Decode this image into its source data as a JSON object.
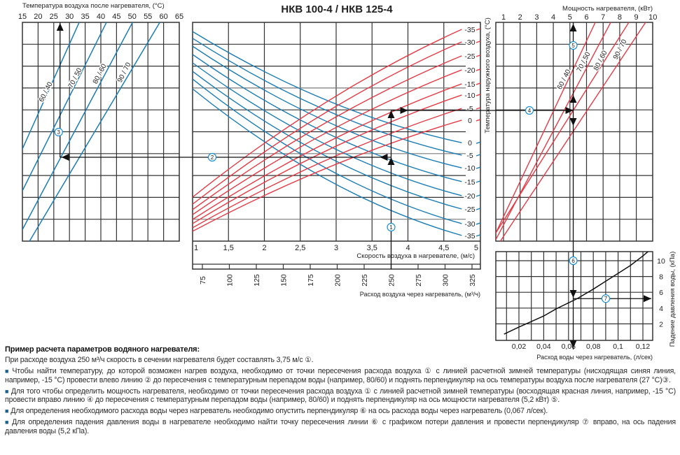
{
  "title": "НКВ 100-4 / НКВ 125-4",
  "colors": {
    "blue": "#1b7db4",
    "red": "#e63a46",
    "grid": "#333333",
    "grid_light": "#7a7a7a",
    "arrow": "#111111",
    "marker": "#1b8fd0"
  },
  "example": {
    "airflow": 250,
    "velocity": 3.75,
    "outlet_temp": 27,
    "power": 5.2,
    "water_flow": 0.067,
    "pressure_drop": 5.2
  },
  "markers": [
    "1",
    "2",
    "3",
    "4",
    "5",
    "6",
    "7"
  ],
  "chart_data": [
    {
      "id": "outlet-temperature",
      "type": "line",
      "xlabel": "Температура воздуха после нагревателя, (°С)",
      "xlim": [
        15,
        65
      ],
      "xticks": [
        "15",
        "20",
        "25",
        "30",
        "35",
        "40",
        "45",
        "50",
        "55",
        "60",
        "65"
      ],
      "ylim": [
        0,
        10
      ],
      "grid": true,
      "series": [
        {
          "name": "60 / 40",
          "points": [
            [
              33.1,
              0
            ],
            [
              16.3,
              5.37
            ]
          ]
        },
        {
          "name": "70 / 50",
          "points": [
            [
              41.8,
              0
            ],
            [
              23.1,
              5.37
            ]
          ]
        },
        {
          "name": "80 / 60",
          "points": [
            [
              50.1,
              0
            ],
            [
              30.2,
              5.37
            ]
          ]
        },
        {
          "name": "90 / 70",
          "points": [
            [
              58.8,
              0
            ],
            [
              36.5,
              5.37
            ]
          ]
        }
      ]
    },
    {
      "id": "air-velocity",
      "type": "line",
      "xlabel": "Скорость воздуха в нагревателе, (м/с)",
      "xlim": [
        1,
        5
      ],
      "xticks": [
        "1",
        "1,5",
        "2",
        "2,5",
        "3",
        "3,5",
        "4",
        "4,5",
        "5"
      ],
      "secondary_xlabel": "Расход воздуха через нагреватель, (м³/ч)",
      "secondary_xticks": [
        "75",
        "100",
        "125",
        "150",
        "175",
        "200",
        "225",
        "250",
        "275",
        "300",
        "325"
      ],
      "ylabel": "Температура наружного воздуха, (°С)",
      "ylim": [
        0,
        10
      ],
      "grid": true,
      "series_blue": [
        {
          "name": "0",
          "points": [
            [
              1,
              0.42
            ],
            [
              2.875,
              3.57
            ],
            [
              4.75,
              5.5
            ]
          ]
        },
        {
          "name": "-5",
          "points": [
            [
              1,
              0.73
            ],
            [
              2.875,
              4.04
            ],
            [
              4.75,
              6.07
            ]
          ]
        },
        {
          "name": "-10",
          "points": [
            [
              1,
              1.09
            ],
            [
              2.875,
              4.54
            ],
            [
              4.75,
              6.65
            ]
          ]
        },
        {
          "name": "-15",
          "points": [
            [
              1,
              1.47
            ],
            [
              2.875,
              5.07
            ],
            [
              4.75,
              7.28
            ]
          ]
        },
        {
          "name": "-20",
          "points": [
            [
              1,
              1.85
            ],
            [
              2.875,
              5.61
            ],
            [
              4.75,
              7.92
            ]
          ]
        },
        {
          "name": "-25",
          "points": [
            [
              1,
              2.24
            ],
            [
              2.875,
              6.14
            ],
            [
              4.75,
              8.53
            ]
          ]
        },
        {
          "name": "-30",
          "points": [
            [
              1,
              2.59
            ],
            [
              2.875,
              6.69
            ],
            [
              4.75,
              9.2
            ]
          ]
        },
        {
          "name": "-35",
          "points": [
            [
              1,
              3.04
            ],
            [
              2.875,
              7.19
            ],
            [
              4.75,
              9.74
            ]
          ]
        }
      ],
      "series_red": [
        {
          "name": "-35",
          "points": [
            [
              1,
              7.99
            ],
            [
              2.875,
              3.62
            ],
            [
              4.75,
              0.32
            ]
          ]
        },
        {
          "name": "-30",
          "points": [
            [
              1,
              8.31
            ],
            [
              2.875,
              4.08
            ],
            [
              4.75,
              0.89
            ]
          ]
        },
        {
          "name": "-25",
          "points": [
            [
              1,
              8.56
            ],
            [
              2.875,
              4.55
            ],
            [
              4.75,
              1.53
            ]
          ]
        },
        {
          "name": "-20",
          "points": [
            [
              1,
              8.79
            ],
            [
              2.875,
              5.02
            ],
            [
              4.75,
              2.17
            ]
          ]
        },
        {
          "name": "-15",
          "points": [
            [
              1,
              9.01
            ],
            [
              2.875,
              5.48
            ],
            [
              4.75,
              2.81
            ]
          ]
        },
        {
          "name": "-10",
          "points": [
            [
              1,
              9.2
            ],
            [
              2.875,
              5.85
            ],
            [
              4.75,
              3.32
            ]
          ]
        },
        {
          "name": "-5",
          "points": [
            [
              1,
              9.39
            ],
            [
              2.875,
              6.28
            ],
            [
              4.75,
              3.93
            ]
          ]
        },
        {
          "name": "0",
          "points": [
            [
              1,
              9.55
            ],
            [
              2.875,
              6.65
            ],
            [
              4.75,
              4.47
            ]
          ]
        }
      ]
    },
    {
      "id": "heater-power",
      "type": "line",
      "xlabel": "Мощность нагревателя, (кВт)",
      "xlim": [
        0.5,
        10
      ],
      "xticks": [
        "1",
        "2",
        "3",
        "4",
        "5",
        "6",
        "7",
        "8",
        "9",
        "10"
      ],
      "ylim": [
        0,
        10
      ],
      "grid": true,
      "series": [
        {
          "name": "60 / 40",
          "points": [
            [
              6.53,
              0
            ],
            [
              4.04,
              4
            ]
          ]
        },
        {
          "name": "70 / 50",
          "points": [
            [
              7.46,
              0
            ],
            [
              4.67,
              4
            ]
          ]
        },
        {
          "name": "80 / 60",
          "points": [
            [
              8.55,
              0
            ],
            [
              5.22,
              4
            ]
          ]
        },
        {
          "name": "90 / 70",
          "points": [
            [
              9.56,
              0
            ],
            [
              6.06,
              4
            ]
          ]
        }
      ]
    },
    {
      "id": "pressure-drop",
      "type": "line",
      "xlabel": "Расход воды через нагреватель, (л/сек)",
      "ylabel": "Падение давления воды, (кПа)",
      "xlim": [
        0,
        0.128
      ],
      "ylim": [
        0,
        11.2
      ],
      "xticks": [
        "0,02",
        "0,04",
        "0,06",
        "0,08",
        "0,1",
        "0,12"
      ],
      "yticks": [
        "2",
        "4",
        "6",
        "8",
        "10"
      ],
      "grid": true,
      "series": [
        {
          "name": "pressure-loss",
          "points": [
            [
              0.008,
              0.7
            ],
            [
              0.02,
              1.6
            ],
            [
              0.03,
              2.3
            ],
            [
              0.04,
              3.0
            ],
            [
              0.05,
              3.9
            ],
            [
              0.067,
              5.2
            ],
            [
              0.08,
              6.4
            ],
            [
              0.09,
              7.4
            ],
            [
              0.1,
              8.4
            ],
            [
              0.11,
              9.4
            ],
            [
              0.12,
              10.6
            ],
            [
              0.126,
              11.4
            ]
          ]
        }
      ]
    }
  ],
  "description": {
    "heading": "Пример расчета параметров водяного нагревателя:",
    "intro": "При расходе воздуха 250 м³/ч скорость в сечении нагревателя будет составлять 3,75 м/с ①.",
    "bullet": "■",
    "items": [
      "Чтобы найти температуру, до которой возможен нагрев воздуха, необходимо от точки пересечения расхода воздуха ① с линией расчетной зимней температуры (нисходящая синяя линия, например, -15 °С) провести влево линию ② до пересечения с температурным перепадом воды (например, 80/60) и поднять перпендикуляр на ось температуры воздуха после нагревателя (27 °С)③.",
      "Для того чтобы определить мощность нагревателя, необходимо от точки пересечения расхода воздуха ① с линией расчетной зимней температуры (восходящая красная линия, например, -15 °С) провести вправо линию ④ до пересечения с температурным перепадом воды (например, 80/60) и поднять перпендикуляр на ось мощности нагревателя (5,2 кВт) ⑤.",
      "Для определения необходимого расхода воды через нагреватель необходимо опустить перпендикуляр ⑥ на ось расхода воды через нагреватель (0,067 л/сек).",
      "Для определения падения давления воды в нагревателе необходимо найти точку пересечения линии ⑥ с графиком потери давления и провести перпендикуляр ⑦ вправо, на ось падения давления воды (5,2 кПа)."
    ]
  }
}
